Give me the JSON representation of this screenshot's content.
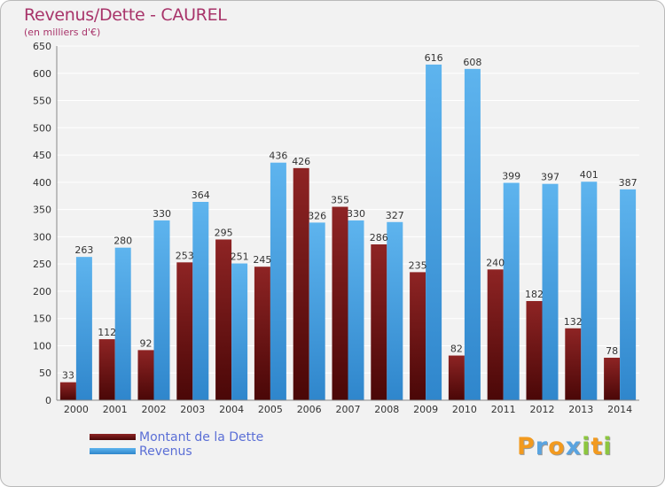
{
  "title": "Revenus/Dette - CAUREL",
  "subtitle": "(en milliers d'€)",
  "colors": {
    "dette": "#7a1616",
    "revenus": "#4aa3e6",
    "title": "#a8346a",
    "legend_text": "#5b6fd6"
  },
  "chart_data": {
    "type": "bar",
    "categories": [
      "2000",
      "2001",
      "2002",
      "2003",
      "2004",
      "2005",
      "2006",
      "2007",
      "2008",
      "2009",
      "2010",
      "2011",
      "2012",
      "2013",
      "2014"
    ],
    "series": [
      {
        "name": "Montant de la Dette",
        "values": [
          33,
          112,
          92,
          253,
          295,
          245,
          426,
          355,
          286,
          235,
          82,
          240,
          182,
          132,
          78
        ]
      },
      {
        "name": "Revenus",
        "values": [
          263,
          280,
          330,
          364,
          251,
          436,
          326,
          330,
          327,
          616,
          608,
          399,
          397,
          401,
          387
        ]
      }
    ],
    "ylim": [
      0,
      650
    ],
    "yticks": [
      0,
      50,
      100,
      150,
      200,
      250,
      300,
      350,
      400,
      450,
      500,
      550,
      600,
      650
    ],
    "grid": true,
    "legend": "bottom-left"
  },
  "legend": [
    {
      "label": "Montant de la Dette"
    },
    {
      "label": "Revenus"
    }
  ],
  "logo": {
    "letters": [
      "P",
      "r",
      "o",
      "x",
      "i",
      "t",
      "i"
    ],
    "colors": [
      "#f29a1f",
      "#5aa4e0",
      "#f29a1f",
      "#5aa4e0",
      "#8cc63f",
      "#f29a1f",
      "#8cc63f"
    ]
  }
}
